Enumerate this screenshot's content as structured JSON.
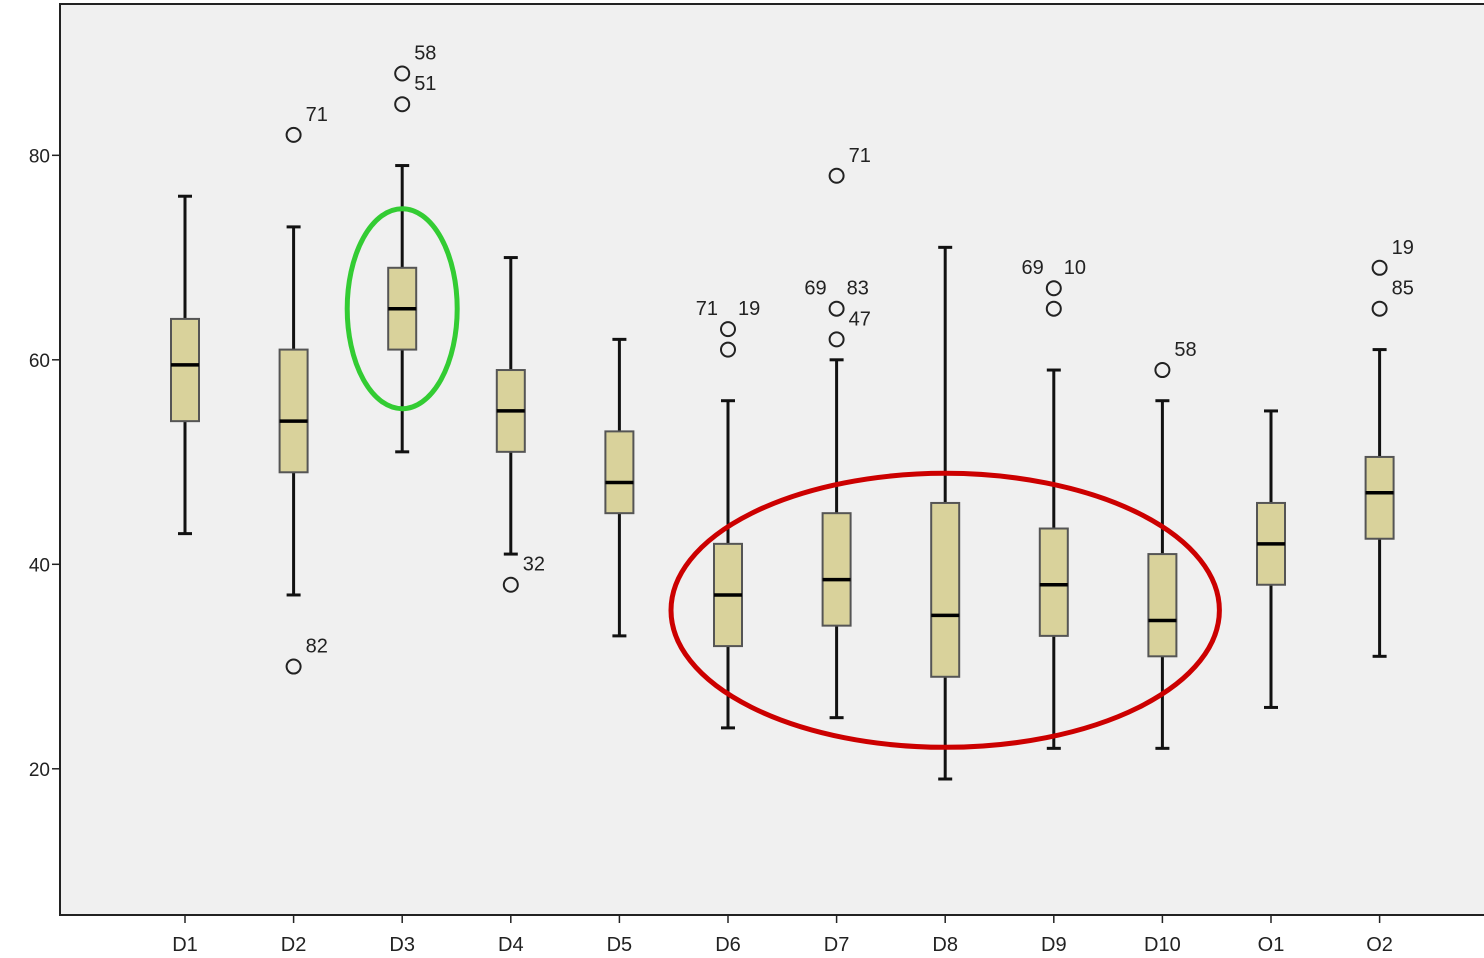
{
  "chart_data": {
    "type": "boxplot",
    "title": "",
    "xlabel": "",
    "ylabel": "",
    "ylim": [
      5.7,
      94.8
    ],
    "yticks": [
      20,
      40,
      60,
      80
    ],
    "categories": [
      "D1",
      "D2",
      "D3",
      "D4",
      "D5",
      "D6",
      "D7",
      "D8",
      "D9",
      "D10",
      "O1",
      "O2"
    ],
    "boxes": [
      {
        "category": "D1",
        "whisker_low": 43,
        "q1": 54,
        "median": 59.5,
        "q3": 64,
        "whisker_high": 76,
        "outliers": []
      },
      {
        "category": "D2",
        "whisker_low": 37,
        "q1": 49,
        "median": 54,
        "q3": 61,
        "whisker_high": 73,
        "outliers": [
          {
            "value": 82,
            "label": "71"
          },
          {
            "value": 30,
            "label": "82"
          }
        ]
      },
      {
        "category": "D3",
        "whisker_low": 51,
        "q1": 61,
        "median": 65,
        "q3": 69,
        "whisker_high": 79,
        "outliers": [
          {
            "value": 88,
            "label": "58"
          },
          {
            "value": 85,
            "label": "51"
          }
        ]
      },
      {
        "category": "D4",
        "whisker_low": 41,
        "q1": 51,
        "median": 55,
        "q3": 59,
        "whisker_high": 70,
        "outliers": [
          {
            "value": 38,
            "label": "32"
          }
        ]
      },
      {
        "category": "D5",
        "whisker_low": 33,
        "q1": 45,
        "median": 48,
        "q3": 53,
        "whisker_high": 62,
        "outliers": []
      },
      {
        "category": "D6",
        "whisker_low": 24,
        "q1": 32,
        "median": 37,
        "q3": 42,
        "whisker_high": 56,
        "outliers": [
          {
            "value": 63,
            "label": "71"
          },
          {
            "value": 63,
            "label": "19"
          },
          {
            "value": 61,
            "label": ""
          }
        ]
      },
      {
        "category": "D7",
        "whisker_low": 25,
        "q1": 34,
        "median": 38.5,
        "q3": 45,
        "whisker_high": 60,
        "outliers": [
          {
            "value": 78,
            "label": "71"
          },
          {
            "value": 65,
            "label": "69"
          },
          {
            "value": 65,
            "label": "83"
          },
          {
            "value": 65,
            "label": "47"
          },
          {
            "value": 62,
            "label": ""
          }
        ]
      },
      {
        "category": "D8",
        "whisker_low": 19,
        "q1": 29,
        "median": 35,
        "q3": 46,
        "whisker_high": 71,
        "outliers": []
      },
      {
        "category": "D9",
        "whisker_low": 22,
        "q1": 33,
        "median": 38,
        "q3": 43.5,
        "whisker_high": 59,
        "outliers": [
          {
            "value": 67,
            "label": "69"
          },
          {
            "value": 67,
            "label": "10"
          },
          {
            "value": 65,
            "label": ""
          }
        ]
      },
      {
        "category": "D10",
        "whisker_low": 22,
        "q1": 31,
        "median": 34.5,
        "q3": 41,
        "whisker_high": 56,
        "outliers": [
          {
            "value": 59,
            "label": "58"
          }
        ]
      },
      {
        "category": "O1",
        "whisker_low": 26,
        "q1": 38,
        "median": 42,
        "q3": 46,
        "whisker_high": 55,
        "outliers": []
      },
      {
        "category": "O2",
        "whisker_low": 31,
        "q1": 42.5,
        "median": 47,
        "q3": 50.5,
        "whisker_high": 61,
        "outliers": [
          {
            "value": 69,
            "label": "19"
          },
          {
            "value": 65,
            "label": "85"
          }
        ]
      }
    ],
    "highlights": [
      {
        "shape": "ellipse",
        "color": "#33cc33",
        "around": [
          "D3"
        ]
      },
      {
        "shape": "ellipse",
        "color": "#cc0000",
        "around": [
          "D6",
          "D7",
          "D8",
          "D9",
          "D10"
        ]
      }
    ],
    "grid": false,
    "colors": {
      "plot_background": "#f0f0f0",
      "box_fill": "#d9d29b",
      "box_stroke": "#555555",
      "whisker": "#111111"
    }
  }
}
